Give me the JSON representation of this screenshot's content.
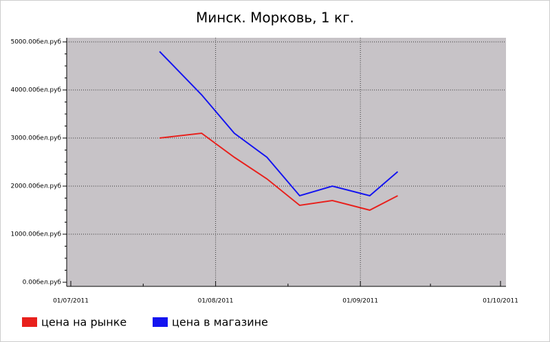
{
  "chart_data": {
    "type": "line",
    "title": "Минск. Морковь, 1 кг.",
    "x": [
      "2011-07-20",
      "2011-07-29",
      "2011-08-05",
      "2011-08-12",
      "2011-08-19",
      "2011-08-26",
      "2011-09-03",
      "2011-09-09"
    ],
    "series": [
      {
        "name": "цена на рынке",
        "color": "#e8201c",
        "values": [
          3000,
          3100,
          2600,
          2150,
          1600,
          1700,
          1500,
          1800
        ]
      },
      {
        "name": "цена в магазине",
        "color": "#1414f0",
        "values": [
          4800,
          3900,
          3100,
          2600,
          1800,
          2000,
          1800,
          2300
        ]
      }
    ],
    "xlim": [
      "2011-07-01",
      "2011-10-01"
    ],
    "xticks": [
      {
        "value": "2011-07-01",
        "label": "01/07/2011"
      },
      {
        "value": "2011-08-01",
        "label": "01/08/2011"
      },
      {
        "value": "2011-09-01",
        "label": "01/09/2011"
      },
      {
        "value": "2011-10-01",
        "label": "01/10/2011"
      }
    ],
    "ylim": [
      0,
      5000
    ],
    "yticks": [
      {
        "value": 0,
        "label": "0.00бел.руб"
      },
      {
        "value": 1000,
        "label": "1000.00бел.руб"
      },
      {
        "value": 2000,
        "label": "2000.00бел.руб"
      },
      {
        "value": 3000,
        "label": "3000.00бел.руб"
      },
      {
        "value": 4000,
        "label": "4000.00бел.руб"
      },
      {
        "value": 5000,
        "label": "5000.00бел.руб"
      }
    ],
    "grid": true
  }
}
